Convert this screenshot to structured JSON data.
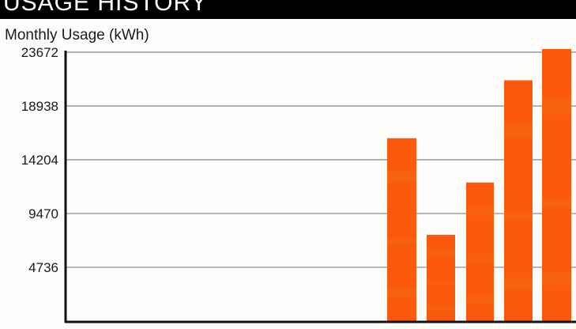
{
  "header": {
    "title": "USAGE HISTORY"
  },
  "colors": {
    "bar": "#fb5a0e",
    "bar_band": "#f46a0c",
    "grid": "#9a9a9a",
    "axis": "#111111",
    "header_bg": "#000000"
  },
  "chart_data": {
    "type": "bar",
    "title": "Monthly Usage (kWh)",
    "xlabel": "",
    "ylabel": "",
    "ylim": [
      0,
      23672
    ],
    "yticks": [
      4736,
      9470,
      14204,
      18938,
      23672
    ],
    "yticks_labels": [
      "4736",
      "9470",
      "14204",
      "18938",
      "23672"
    ],
    "grid": true,
    "values": [
      16100,
      7600,
      12200,
      21200,
      24700
    ]
  }
}
